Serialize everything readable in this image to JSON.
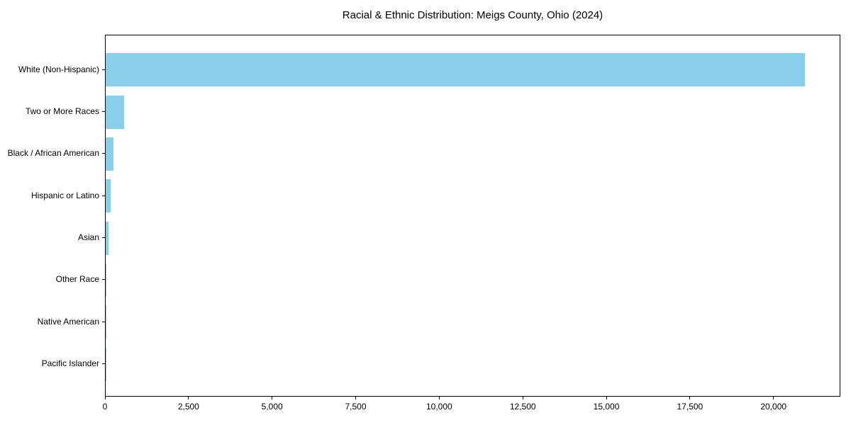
{
  "title": "Racial & Ethnic Distribution: Meigs County, Ohio (2024)",
  "chart_data": {
    "type": "bar",
    "orientation": "horizontal",
    "title": "Racial & Ethnic Distribution: Meigs County, Ohio (2024)",
    "xlabel": "",
    "ylabel": "",
    "categories": [
      "White (Non-Hispanic)",
      "Two or More Races",
      "Black / African American",
      "Hispanic or Latino",
      "Asian",
      "Other Race",
      "Native American",
      "Pacific Islander"
    ],
    "values": [
      20950,
      550,
      230,
      155,
      78,
      30,
      14,
      4
    ],
    "xlim": [
      0,
      22000
    ],
    "x_ticks": [
      0,
      2500,
      5000,
      7500,
      10000,
      12500,
      15000,
      17500,
      20000
    ],
    "x_tick_labels": [
      "0",
      "2,500",
      "5,000",
      "7,500",
      "10,000",
      "12,500",
      "15,000",
      "17,500",
      "20,000"
    ],
    "bar_color": "#87CEEB",
    "grid": false,
    "legend": null,
    "background_color": "#ffffff",
    "frame_color": "#000000"
  }
}
